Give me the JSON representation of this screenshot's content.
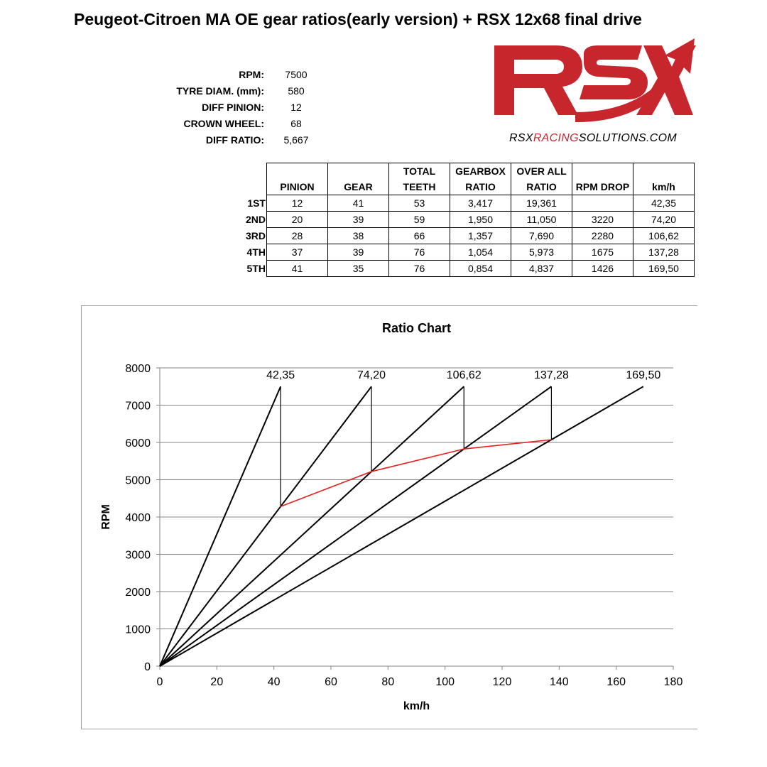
{
  "title": "Peugeot-Citroen MA OE gear ratios(early version) + RSX 12x68 final drive",
  "parameters": [
    {
      "label": "RPM:",
      "value": "7500"
    },
    {
      "label": "TYRE DIAM. (mm):",
      "value": "580"
    },
    {
      "label": "DIFF PINION:",
      "value": "12"
    },
    {
      "label": "CROWN WHEEL:",
      "value": "68"
    },
    {
      "label": "DIFF RATIO:",
      "value": "5,667"
    }
  ],
  "logo": {
    "text": "RSX",
    "url_part1": "RSX",
    "url_part2": "RACING",
    "url_part3": "SOLUTIONS.COM",
    "colors": {
      "brand_red": "#c8262d"
    }
  },
  "gear_table": {
    "headers": [
      [
        "",
        "PINION"
      ],
      [
        "",
        "GEAR"
      ],
      [
        "TOTAL",
        "TEETH"
      ],
      [
        "GEARBOX",
        "RATIO"
      ],
      [
        "OVER ALL",
        "RATIO"
      ],
      [
        "",
        "RPM DROP"
      ],
      [
        "",
        "km/h"
      ]
    ],
    "rows": [
      {
        "gear": "1ST",
        "cells": [
          "12",
          "41",
          "53",
          "3,417",
          "19,361",
          "",
          "42,35"
        ]
      },
      {
        "gear": "2ND",
        "cells": [
          "20",
          "39",
          "59",
          "1,950",
          "11,050",
          "3220",
          "74,20"
        ]
      },
      {
        "gear": "3RD",
        "cells": [
          "28",
          "38",
          "66",
          "1,357",
          "7,690",
          "2280",
          "106,62"
        ]
      },
      {
        "gear": "4TH",
        "cells": [
          "37",
          "39",
          "76",
          "1,054",
          "5,973",
          "1675",
          "137,28"
        ]
      },
      {
        "gear": "5TH",
        "cells": [
          "41",
          "35",
          "76",
          "0,854",
          "4,837",
          "1426",
          "169,50"
        ]
      }
    ]
  },
  "chart_data": {
    "type": "line",
    "title": "Ratio Chart",
    "xlabel": "km/h",
    "ylabel": "RPM",
    "xlim": [
      0,
      180
    ],
    "ylim": [
      0,
      8000
    ],
    "xticks": [
      0,
      20,
      40,
      60,
      80,
      100,
      120,
      140,
      160,
      180
    ],
    "yticks": [
      0,
      1000,
      2000,
      3000,
      4000,
      5000,
      6000,
      7000,
      8000
    ],
    "grid": true,
    "legend": "none",
    "gear_lines": [
      {
        "points": [
          [
            0,
            0
          ],
          [
            42.35,
            7500
          ]
        ],
        "label": "42,35"
      },
      {
        "points": [
          [
            0,
            0
          ],
          [
            74.2,
            7500
          ]
        ],
        "label": "74,20"
      },
      {
        "points": [
          [
            0,
            0
          ],
          [
            106.62,
            7500
          ]
        ],
        "label": "106,62"
      },
      {
        "points": [
          [
            0,
            0
          ],
          [
            137.28,
            7500
          ]
        ],
        "label": "137,28"
      },
      {
        "points": [
          [
            0,
            0
          ],
          [
            169.5,
            7500
          ]
        ],
        "label": "169,50"
      }
    ],
    "drop_lines": [
      {
        "x": 42.35,
        "from": 7500,
        "to": 4280
      },
      {
        "x": 74.2,
        "from": 7500,
        "to": 5220
      },
      {
        "x": 106.62,
        "from": 7500,
        "to": 5825
      },
      {
        "x": 137.28,
        "from": 7500,
        "to": 6074
      }
    ],
    "shift_curve": {
      "points": [
        [
          42.35,
          4280
        ],
        [
          74.2,
          5220
        ],
        [
          106.62,
          5825
        ],
        [
          137.28,
          6074
        ]
      ],
      "color": "#e8201e"
    }
  }
}
